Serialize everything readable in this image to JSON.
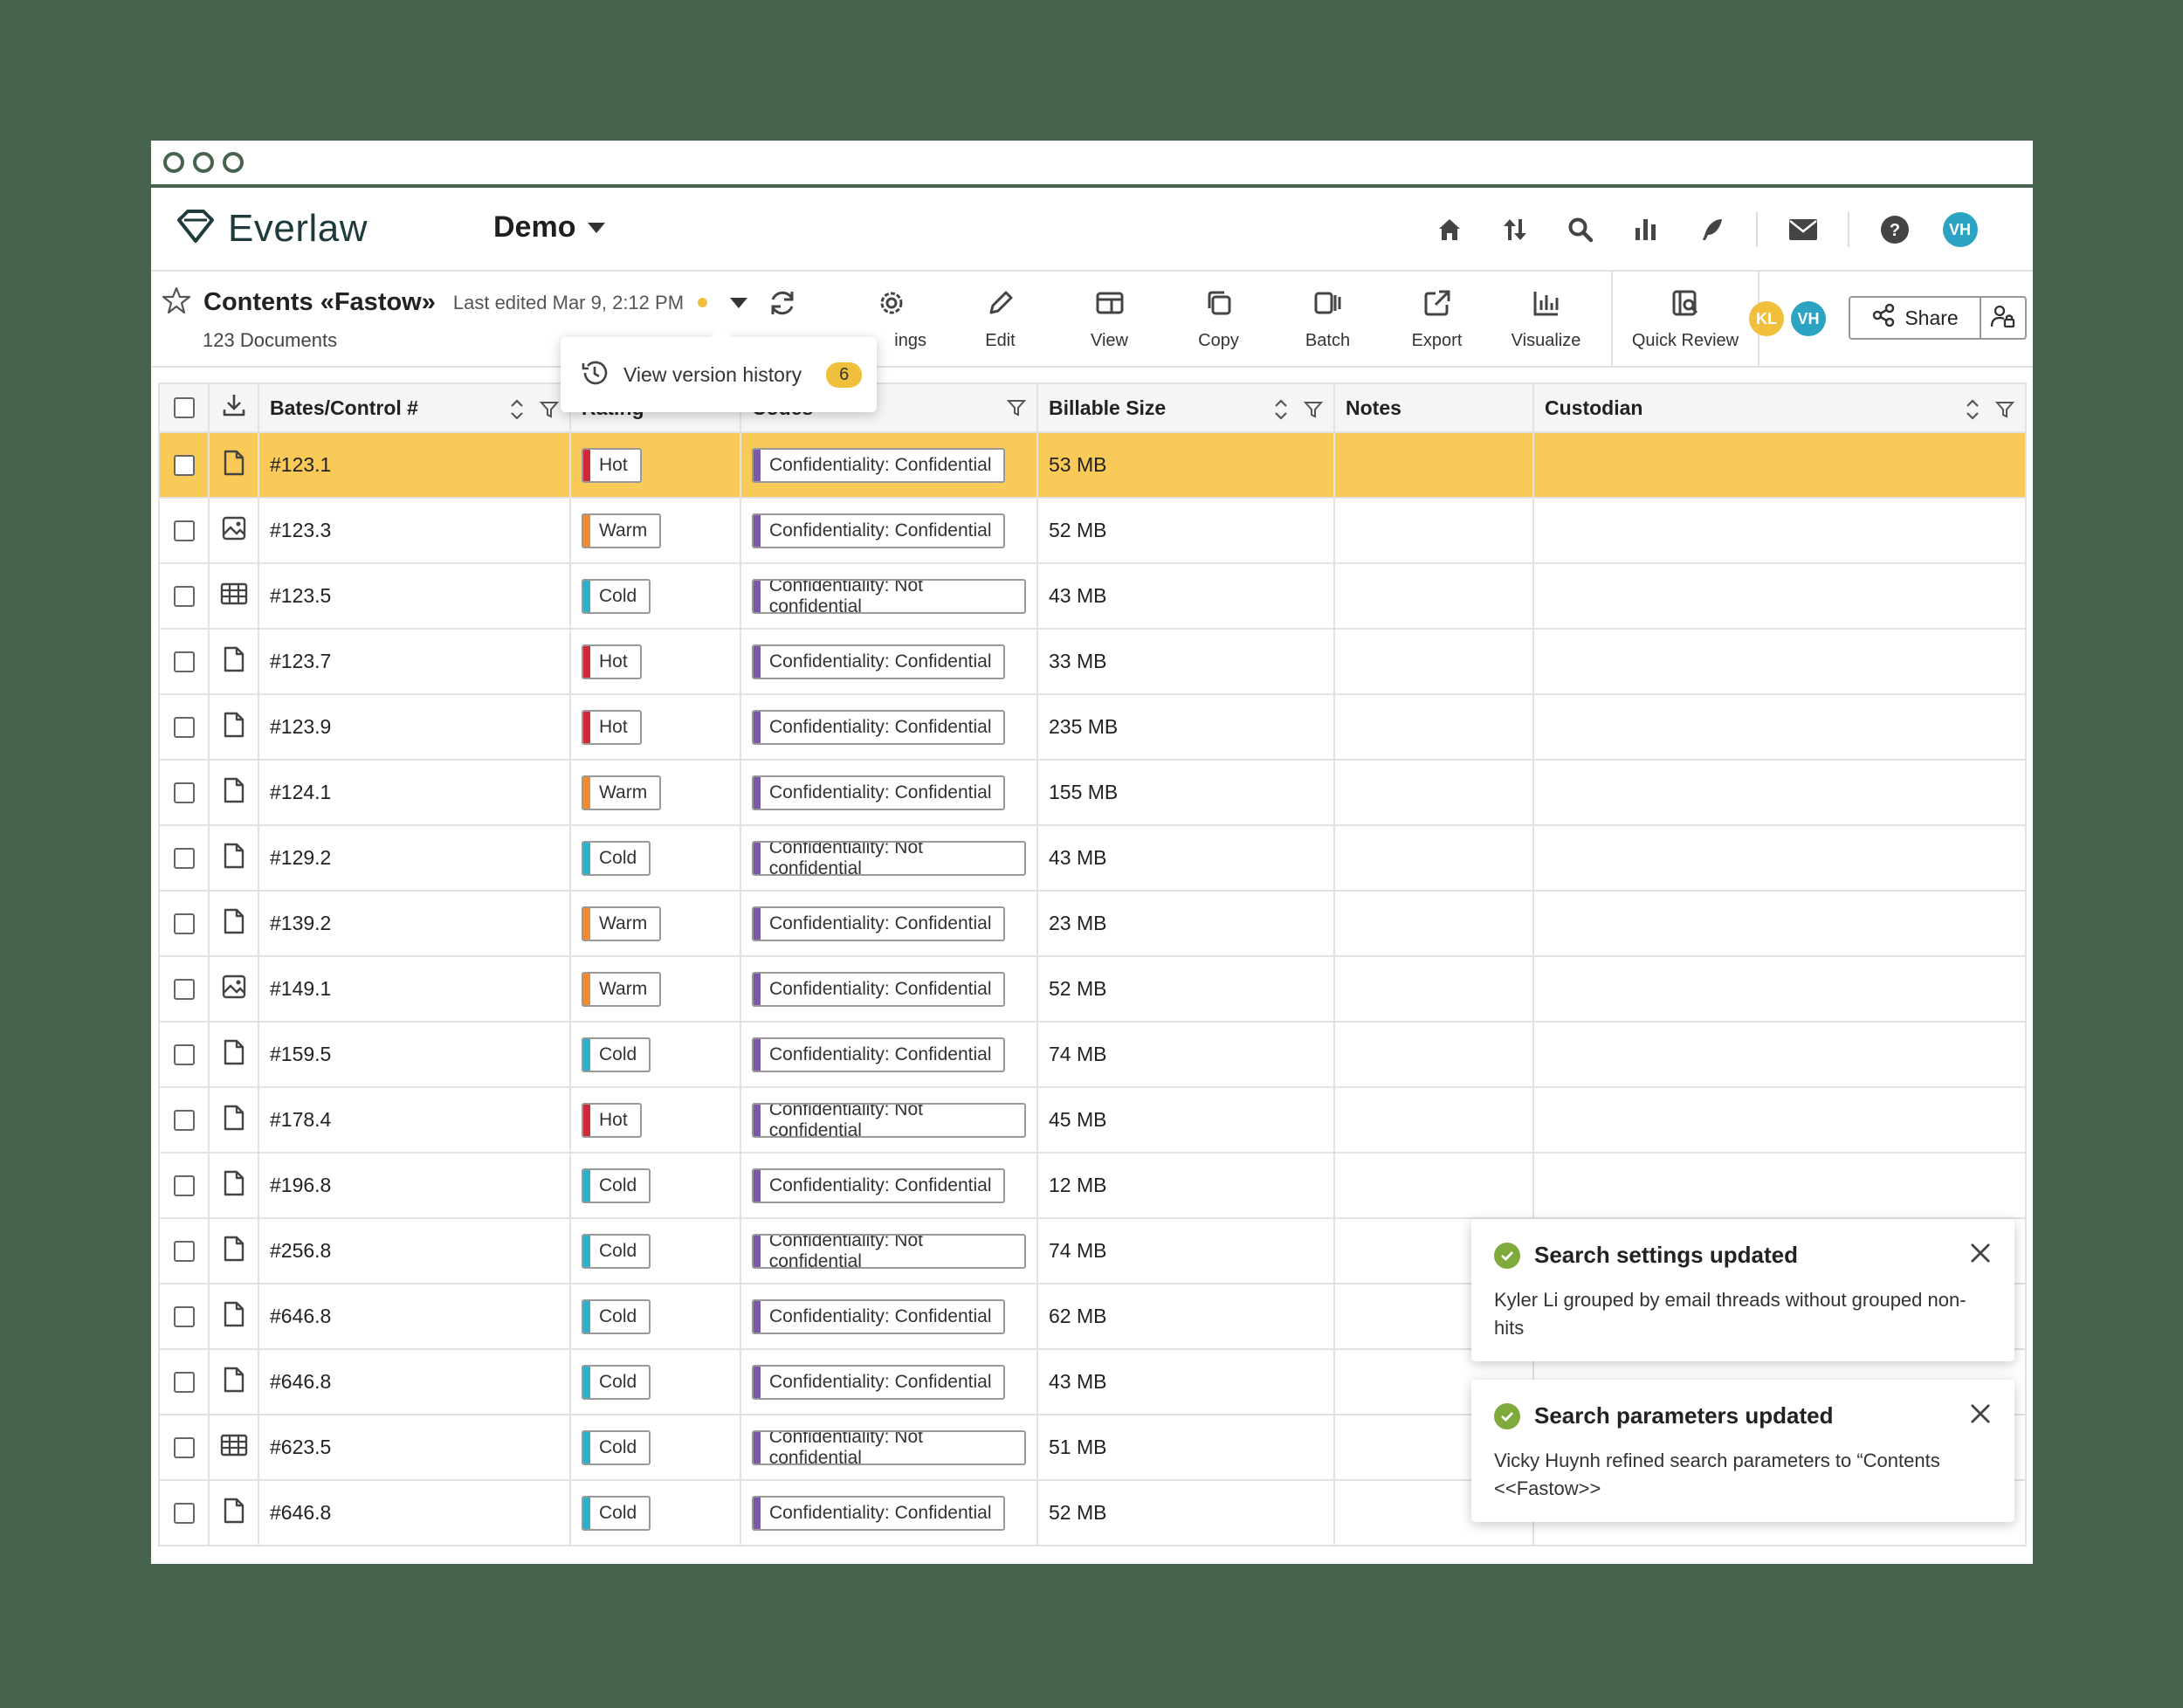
{
  "app": {
    "brand": "Everlaw",
    "project": "Demo",
    "accent": "#1f3a3b"
  },
  "nav": {
    "icons": [
      "home-icon",
      "sort-icon",
      "search-icon",
      "bar-chart-icon",
      "pen-icon",
      "mail-icon",
      "help-icon"
    ],
    "user_initials": "VH"
  },
  "document": {
    "title": "Contents «Fastow»",
    "last_edited": "Last edited Mar 9, 2:12 PM",
    "count": "123 Documents"
  },
  "tools": [
    {
      "label": "",
      "icon": "refresh-icon"
    },
    {
      "label": "ings",
      "icon": "gear-icon"
    },
    {
      "label": "Edit",
      "icon": "pencil-icon"
    },
    {
      "label": "View",
      "icon": "view-icon"
    },
    {
      "label": "Copy",
      "icon": "copy-icon"
    },
    {
      "label": "Batch",
      "icon": "batch-icon"
    },
    {
      "label": "Export",
      "icon": "export-icon"
    },
    {
      "label": "Visualize",
      "icon": "chart-icon"
    }
  ],
  "quick_review": "Quick Review",
  "collaborators": [
    {
      "initials": "KL",
      "color": "#f0c03c"
    },
    {
      "initials": "VH",
      "color": "#2da3c4"
    }
  ],
  "share_label": "Share",
  "version_popup": {
    "label": "View version history",
    "count": "6"
  },
  "columns": {
    "bates": "Bates/Control #",
    "rating": "Rating",
    "codes": "Codes",
    "size": "Billable Size",
    "notes": "Notes",
    "custodian": "Custodian"
  },
  "rating_colors": {
    "Hot": "#d0293a",
    "Warm": "#f08a36",
    "Cold": "#2eb0c9"
  },
  "code_color": "#7a5aa6",
  "rows": [
    {
      "id": "#123.1",
      "type": "doc",
      "rating": "Hot",
      "code": "Confidentiality: Confidential",
      "size": "53 MB",
      "selected": true
    },
    {
      "id": "#123.3",
      "type": "image",
      "rating": "Warm",
      "code": "Confidentiality: Confidential",
      "size": "52 MB"
    },
    {
      "id": "#123.5",
      "type": "sheet",
      "rating": "Cold",
      "code": "Confidentiality: Not confidential",
      "size": "43 MB"
    },
    {
      "id": "#123.7",
      "type": "doc",
      "rating": "Hot",
      "code": "Confidentiality: Confidential",
      "size": "33 MB"
    },
    {
      "id": "#123.9",
      "type": "doc",
      "rating": "Hot",
      "code": "Confidentiality: Confidential",
      "size": "235 MB"
    },
    {
      "id": "#124.1",
      "type": "doc",
      "rating": "Warm",
      "code": "Confidentiality: Confidential",
      "size": "155 MB"
    },
    {
      "id": "#129.2",
      "type": "doc",
      "rating": "Cold",
      "code": "Confidentiality: Not confidential",
      "size": "43 MB"
    },
    {
      "id": "#139.2",
      "type": "doc",
      "rating": "Warm",
      "code": "Confidentiality: Confidential",
      "size": "23 MB"
    },
    {
      "id": "#149.1",
      "type": "image",
      "rating": "Warm",
      "code": "Confidentiality: Confidential",
      "size": "52 MB"
    },
    {
      "id": "#159.5",
      "type": "doc",
      "rating": "Cold",
      "code": "Confidentiality: Confidential",
      "size": "74 MB"
    },
    {
      "id": "#178.4",
      "type": "doc",
      "rating": "Hot",
      "code": "Confidentiality: Not confidential",
      "size": "45 MB"
    },
    {
      "id": "#196.8",
      "type": "doc",
      "rating": "Cold",
      "code": "Confidentiality: Confidential",
      "size": "12 MB"
    },
    {
      "id": "#256.8",
      "type": "doc",
      "rating": "Cold",
      "code": "Confidentiality: Not confidential",
      "size": "74 MB"
    },
    {
      "id": "#646.8",
      "type": "doc",
      "rating": "Cold",
      "code": "Confidentiality: Confidential",
      "size": "62 MB"
    },
    {
      "id": "#646.8",
      "type": "doc",
      "rating": "Cold",
      "code": "Confidentiality: Confidential",
      "size": "43 MB"
    },
    {
      "id": "#623.5",
      "type": "sheet",
      "rating": "Cold",
      "code": "Confidentiality: Not confidential",
      "size": "51 MB"
    },
    {
      "id": "#646.8",
      "type": "doc",
      "rating": "Cold",
      "code": "Confidentiality: Confidential",
      "size": "52 MB"
    }
  ],
  "toasts": [
    {
      "title": "Search settings updated",
      "body": "Kyler Li grouped by email threads without grouped non-hits"
    },
    {
      "title": "Search parameters updated",
      "body": "Vicky Huynh refined search parameters to “Contents <<Fastow>>"
    }
  ]
}
